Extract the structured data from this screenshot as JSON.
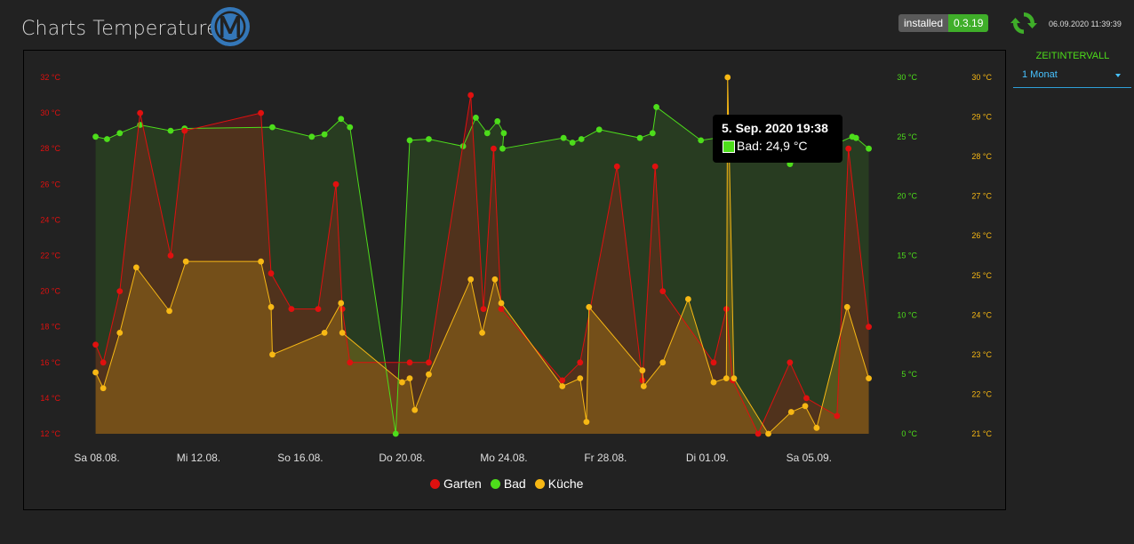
{
  "header": {
    "title": "Charts Temperaturen",
    "badge_key": "installed",
    "badge_value": "0.3.19",
    "timestamp": "06.09.2020 11:39:39"
  },
  "zeitintervall": {
    "label": "ZEITINTERVALL",
    "value": "1 Monat"
  },
  "tooltip": {
    "title": "5. Sep. 2020 19:38",
    "text": "Bad: 24,9 °C"
  },
  "colors": {
    "garten": "#e0100f",
    "bad": "#4ddd1b",
    "kueche": "#f7b814"
  },
  "chart_data": {
    "type": "area",
    "x_labels": [
      "Sa 08.08.",
      "Mi 12.08.",
      "So 16.08.",
      "Do 20.08.",
      "Mo 24.08.",
      "Fr 28.08.",
      "Di 01.09.",
      "Sa 05.09."
    ],
    "x_label_days": [
      0,
      4,
      8,
      12,
      16,
      20,
      24,
      28
    ],
    "xlim": [
      0,
      30.4
    ],
    "axes": [
      {
        "name": "garten",
        "range": [
          12,
          32
        ],
        "ticks": [
          "12 °C",
          "14 °C",
          "16 °C",
          "18 °C",
          "20 °C",
          "22 °C",
          "24 °C",
          "26 °C",
          "28 °C",
          "30 °C",
          "32 °C"
        ]
      },
      {
        "name": "bad",
        "range": [
          0,
          30
        ],
        "ticks": [
          "0 °C",
          "5 °C",
          "10 °C",
          "15 °C",
          "20 °C",
          "25 °C",
          "30 °C"
        ]
      },
      {
        "name": "kueche",
        "range": [
          21,
          30
        ],
        "ticks": [
          "21 °C",
          "22 °C",
          "23 °C",
          "24 °C",
          "25 °C",
          "26 °C",
          "27 °C",
          "28 °C",
          "29 °C",
          "30 °C"
        ]
      }
    ],
    "series": [
      {
        "name": "Garten",
        "axis": 0,
        "color": "#e0100f",
        "fill": "rgba(224,16,15,0.22)",
        "points": [
          [
            -0.05,
            17
          ],
          [
            0.25,
            16
          ],
          [
            0.9,
            20
          ],
          [
            1.7,
            30
          ],
          [
            2.9,
            22
          ],
          [
            3.45,
            29
          ],
          [
            6.45,
            30
          ],
          [
            6.85,
            21
          ],
          [
            7.65,
            19
          ],
          [
            8.7,
            19
          ],
          [
            9.4,
            26
          ],
          [
            9.65,
            19
          ],
          [
            9.95,
            16
          ],
          [
            12.3,
            16
          ],
          [
            13.05,
            16
          ],
          [
            14.7,
            31
          ],
          [
            15.2,
            19
          ],
          [
            15.6,
            28
          ],
          [
            15.9,
            19
          ],
          [
            18.3,
            15
          ],
          [
            19.0,
            16
          ],
          [
            20.45,
            27
          ],
          [
            21.45,
            15
          ],
          [
            21.95,
            27
          ],
          [
            22.25,
            20
          ],
          [
            24.25,
            16
          ],
          [
            24.75,
            19
          ],
          [
            25.0,
            15
          ],
          [
            26.0,
            12
          ],
          [
            27.25,
            16
          ],
          [
            27.9,
            14
          ],
          [
            29.1,
            13
          ],
          [
            29.55,
            28
          ],
          [
            30.35,
            18
          ]
        ]
      },
      {
        "name": "Bad",
        "axis": 1,
        "color": "#4ddd1b",
        "fill": "rgba(77,221,27,0.14)",
        "points": [
          [
            -0.05,
            25
          ],
          [
            0.4,
            24.8
          ],
          [
            0.9,
            25.3
          ],
          [
            1.7,
            26
          ],
          [
            2.9,
            25.5
          ],
          [
            3.45,
            25.7
          ],
          [
            6.9,
            25.8
          ],
          [
            8.45,
            25
          ],
          [
            8.95,
            25.2
          ],
          [
            9.6,
            26.5
          ],
          [
            9.95,
            25.8
          ],
          [
            11.75,
            0
          ],
          [
            12.3,
            24.7
          ],
          [
            13.05,
            24.8
          ],
          [
            14.4,
            24.2
          ],
          [
            14.9,
            26.6
          ],
          [
            15.35,
            25.3
          ],
          [
            15.75,
            26.3
          ],
          [
            16.0,
            25.3
          ],
          [
            15.95,
            24
          ],
          [
            18.35,
            24.9
          ],
          [
            18.7,
            24.5
          ],
          [
            19.05,
            24.8
          ],
          [
            19.75,
            25.6
          ],
          [
            21.35,
            24.9
          ],
          [
            21.85,
            25.3
          ],
          [
            22.0,
            27.5
          ],
          [
            23.75,
            24.7
          ],
          [
            24.7,
            25
          ],
          [
            25.0,
            25.5
          ],
          [
            27.25,
            22.7
          ],
          [
            29.7,
            25
          ],
          [
            29.85,
            24.9
          ],
          [
            30.35,
            24
          ]
        ]
      },
      {
        "name": "Küche",
        "axis": 2,
        "color": "#f7b814",
        "fill": "rgba(247,184,20,0.22)",
        "points": [
          [
            -0.05,
            22.55
          ],
          [
            0.25,
            22.15
          ],
          [
            0.9,
            23.55
          ],
          [
            1.55,
            25.2
          ],
          [
            2.85,
            24.1
          ],
          [
            3.5,
            25.35
          ],
          [
            6.45,
            25.35
          ],
          [
            6.85,
            24.2
          ],
          [
            6.9,
            23
          ],
          [
            8.95,
            23.55
          ],
          [
            9.6,
            24.3
          ],
          [
            9.65,
            23.55
          ],
          [
            12.0,
            22.3
          ],
          [
            12.3,
            22.4
          ],
          [
            12.5,
            21.6
          ],
          [
            13.05,
            22.5
          ],
          [
            14.7,
            24.9
          ],
          [
            15.15,
            23.55
          ],
          [
            15.65,
            24.9
          ],
          [
            15.9,
            24.3
          ],
          [
            18.3,
            22.2
          ],
          [
            19.0,
            22.4
          ],
          [
            19.25,
            21.3
          ],
          [
            19.35,
            24.2
          ],
          [
            21.45,
            22.6
          ],
          [
            21.5,
            22.2
          ],
          [
            22.25,
            22.8
          ],
          [
            23.25,
            24.4
          ],
          [
            24.25,
            22.3
          ],
          [
            24.75,
            22.4
          ],
          [
            24.8,
            30
          ],
          [
            25.05,
            22.4
          ],
          [
            26.4,
            21
          ],
          [
            27.3,
            21.55
          ],
          [
            27.85,
            21.7
          ],
          [
            28.3,
            21.15
          ],
          [
            29.5,
            24.2
          ],
          [
            30.35,
            22.4
          ]
        ]
      }
    ]
  },
  "legend": [
    "Garten",
    "Bad",
    "Küche"
  ]
}
